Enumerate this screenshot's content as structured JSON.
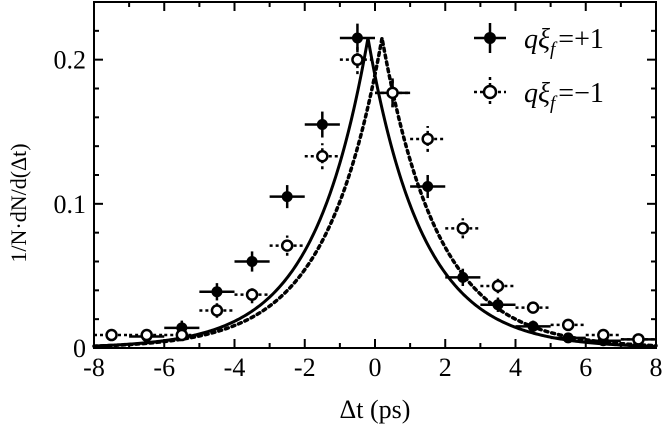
{
  "chart_data": {
    "type": "scatter",
    "xlabel": "Δt (ps)",
    "ylabel": "1/N·dN/d(Δt)",
    "xlim": [
      -8,
      8
    ],
    "ylim": [
      0,
      0.24
    ],
    "xticks": [
      -8,
      -6,
      -4,
      -2,
      0,
      2,
      4,
      6,
      8
    ],
    "xtick_labels": [
      "-8",
      "-6",
      "-4",
      "-2",
      "0",
      "2",
      "4",
      "6",
      "8"
    ],
    "yticks": [
      0,
      0.1,
      0.2
    ],
    "ytick_labels": [
      "0",
      "0.1",
      "0.2"
    ],
    "grid": false,
    "legend_position": "top-right",
    "series": [
      {
        "name": "qξf =+1",
        "legend_label": "qξ",
        "legend_sub": "f",
        "legend_value": "=+1",
        "marker": "filled-circle",
        "line": "solid",
        "x": [
          -6.5,
          -5.5,
          -4.5,
          -3.5,
          -2.5,
          -1.5,
          -0.5,
          0.5,
          1.5,
          2.5,
          3.5,
          4.5,
          5.5,
          6.5,
          7.5
        ],
        "y": [
          0.008,
          0.014,
          0.039,
          0.06,
          0.105,
          0.155,
          0.215,
          0.177,
          0.112,
          0.049,
          0.03,
          0.015,
          0.007,
          0.005,
          0.006
        ],
        "yerr": [
          0.004,
          0.005,
          0.006,
          0.007,
          0.008,
          0.009,
          0.01,
          0.01,
          0.008,
          0.006,
          0.005,
          0.004,
          0.003,
          0.003,
          0.003
        ],
        "curve": {
          "peak_x": -0.2,
          "peak_y": 0.215,
          "tau": 1.55,
          "baseline": 0.0
        }
      },
      {
        "name": "qξf =−1",
        "legend_label": "qξ",
        "legend_sub": "f",
        "legend_value": "=−1",
        "marker": "open-circle",
        "line": "dotted",
        "x": [
          -7.5,
          -6.5,
          -5.5,
          -4.5,
          -3.5,
          -2.5,
          -1.5,
          -0.5,
          0.5,
          1.5,
          2.5,
          3.5,
          4.5,
          5.5,
          6.5,
          7.5
        ],
        "y": [
          0.009,
          0.009,
          0.009,
          0.026,
          0.037,
          0.071,
          0.133,
          0.2,
          0.177,
          0.145,
          0.083,
          0.043,
          0.028,
          0.016,
          0.009,
          0.006
        ],
        "yerr": [
          0.003,
          0.003,
          0.003,
          0.005,
          0.006,
          0.007,
          0.009,
          0.01,
          0.01,
          0.009,
          0.007,
          0.005,
          0.004,
          0.004,
          0.003,
          0.003
        ],
        "curve": {
          "peak_x": 0.2,
          "peak_y": 0.215,
          "tau": 1.6,
          "baseline": 0.0
        }
      }
    ]
  }
}
